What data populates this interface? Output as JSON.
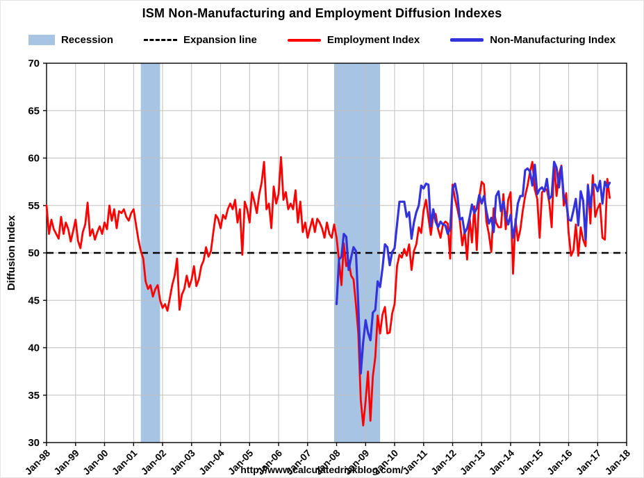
{
  "page": {
    "title": "ISM Non-Manufacturing and Employment Diffusion Indexes",
    "source_url": "http://www.calculatedriskblog.com/"
  },
  "legend": {
    "recession": "Recession",
    "expansion": "Expansion line",
    "employment": "Employment Index",
    "non_manufacturing": "Non-Manufacturing Index"
  },
  "colors": {
    "recession": "#a7c4e4",
    "employment": "#fe0000",
    "non_manufacturing": "#3333dd",
    "grid": "#bfbfbf",
    "axis": "#000000",
    "expansion_line": "#000000"
  },
  "chart_data": {
    "type": "line",
    "title": "ISM Non-Manufacturing and Employment Diffusion Indexes",
    "xlabel": "",
    "ylabel": "Diffusion Index",
    "ylim": [
      30,
      70
    ],
    "y_ticks": [
      30,
      35,
      40,
      45,
      50,
      55,
      60,
      65,
      70
    ],
    "x_tick_labels": [
      "Jan-98",
      "Jan-99",
      "Jan-00",
      "Jan-01",
      "Jan-02",
      "Jan-03",
      "Jan-04",
      "Jan-05",
      "Jan-06",
      "Jan-07",
      "Jan-08",
      "Jan-09",
      "Jan-10",
      "Jan-11",
      "Jan-12",
      "Jan-13",
      "Jan-14",
      "Jan-15",
      "Jan-16",
      "Jan-17",
      "Jan-18"
    ],
    "x_months_per_tick": 12,
    "x_range_months": [
      0,
      240
    ],
    "grid": true,
    "legend_position": "top",
    "expansion_value": 50,
    "recessions": [
      {
        "label": "2001 recession",
        "start_month": 39,
        "end_month": 47
      },
      {
        "label": "2007-2009 recession",
        "start_month": 119,
        "end_month": 138
      }
    ],
    "series": [
      {
        "name": "Employment Index",
        "color_key": "employment",
        "data_name": "employment-line",
        "stroke_width": 2.8,
        "start_label": "Jan-98",
        "start_month": 0,
        "monthly_values": [
          55.0,
          52.0,
          53.5,
          52.5,
          52.0,
          51.5,
          53.8,
          52.0,
          53.2,
          52.5,
          51.2,
          52.3,
          53.5,
          51.3,
          50.5,
          52.2,
          53.0,
          55.3,
          51.8,
          52.5,
          51.4,
          52.2,
          52.8,
          52.0,
          53.2,
          52.5,
          55.0,
          53.4,
          54.6,
          52.6,
          54.4,
          54.2,
          54.6,
          53.8,
          53.4,
          54.2,
          54.6,
          53.0,
          51.4,
          50.2,
          49.4,
          47.0,
          46.2,
          46.6,
          45.4,
          46.2,
          46.6,
          45.0,
          44.2,
          44.6,
          43.9,
          45.2,
          46.6,
          47.6,
          49.4,
          44.0,
          45.6,
          46.2,
          47.6,
          46.4,
          47.2,
          48.6,
          46.5,
          47.2,
          48.6,
          49.2,
          50.6,
          49.6,
          50.2,
          52.2,
          54.0,
          53.6,
          52.6,
          54.0,
          53.6,
          54.6,
          55.2,
          54.6,
          55.6,
          53.2,
          54.6,
          49.8,
          55.4,
          54.6,
          53.2,
          56.4,
          55.4,
          54.2,
          56.2,
          57.4,
          59.6,
          54.6,
          55.2,
          52.6,
          57.0,
          55.2,
          56.2,
          60.1,
          55.6,
          56.4,
          54.6,
          55.2,
          54.6,
          56.6,
          53.2,
          55.4,
          52.2,
          53.2,
          51.6,
          52.6,
          53.6,
          52.2,
          53.6,
          53.2,
          52.6,
          51.6,
          53.2,
          52.0,
          51.6,
          53.0,
          51.6,
          49.2,
          46.6,
          51.0,
          48.6,
          49.2,
          47.6,
          47.2,
          44.6,
          41.5,
          34.5,
          31.8,
          34.4,
          37.5,
          32.3,
          37.0,
          39.0,
          43.4,
          41.5,
          43.5,
          44.3,
          41.5,
          41.6,
          43.6,
          44.6,
          48.6,
          49.8,
          49.5,
          50.4,
          49.7,
          50.9,
          48.2,
          50.2,
          50.9,
          52.7,
          52.1,
          54.5,
          55.6,
          53.7,
          51.9,
          54.0,
          54.1,
          52.5,
          51.6,
          53.0,
          53.3,
          53.1,
          49.4,
          57.2,
          55.7,
          54.6,
          53.4,
          50.8,
          52.3,
          49.3,
          53.8,
          51.1,
          54.9,
          50.3,
          55.8,
          57.5,
          57.2,
          53.3,
          52.0,
          50.1,
          54.7,
          53.2,
          52.7,
          52.7,
          56.2,
          52.5,
          55.6,
          56.4,
          47.8,
          53.6,
          51.3,
          52.4,
          54.4,
          56.0,
          57.1,
          58.5,
          59.6,
          56.7,
          55.7,
          51.6,
          56.4,
          56.6,
          56.7,
          55.3,
          52.7,
          59.6,
          56.0,
          58.3,
          59.2,
          55.0,
          56.3,
          52.1,
          49.7,
          50.3,
          53.0,
          49.7,
          52.7,
          51.4,
          50.7,
          57.2,
          53.1,
          58.2,
          53.8,
          54.7,
          55.2,
          51.6,
          51.4,
          57.8,
          55.8
        ]
      },
      {
        "name": "Non-Manufacturing Index",
        "color_key": "non_manufacturing",
        "data_name": "non-manufacturing-line",
        "stroke_width": 3.2,
        "start_label": "Jan-08",
        "start_month": 120,
        "monthly_values": [
          44.6,
          49.3,
          49.6,
          52.0,
          51.7,
          48.2,
          49.5,
          50.6,
          50.2,
          44.4,
          37.3,
          40.6,
          42.9,
          41.6,
          40.8,
          43.7,
          44.0,
          47.0,
          46.4,
          48.4,
          50.9,
          50.6,
          48.7,
          50.1,
          50.5,
          53.0,
          55.4,
          55.4,
          55.4,
          53.8,
          54.3,
          51.5,
          53.2,
          54.3,
          55.0,
          57.1,
          56.8,
          57.3,
          57.2,
          52.8,
          54.6,
          53.3,
          52.7,
          53.3,
          53.0,
          52.9,
          52.0,
          52.6,
          56.8,
          57.3,
          56.0,
          53.5,
          53.7,
          52.1,
          52.6,
          53.7,
          55.1,
          54.2,
          54.7,
          56.1,
          55.2,
          56.0,
          54.4,
          53.1,
          53.7,
          52.2,
          56.0,
          56.5,
          54.4,
          55.4,
          53.9,
          53.0,
          54.0,
          51.6,
          53.1,
          55.2,
          56.0,
          56.0,
          58.7,
          58.9,
          58.6,
          57.1,
          59.3,
          56.2,
          56.7,
          56.9,
          56.5,
          57.8,
          55.7,
          56.0,
          59.6,
          59.0,
          56.9,
          59.1,
          55.9,
          55.3,
          53.5,
          53.4,
          54.5,
          55.7,
          52.9,
          56.5,
          55.5,
          51.4,
          57.1,
          54.8,
          57.2,
          57.2,
          56.5,
          57.6,
          55.2,
          57.5,
          56.9,
          57.4
        ]
      }
    ]
  }
}
